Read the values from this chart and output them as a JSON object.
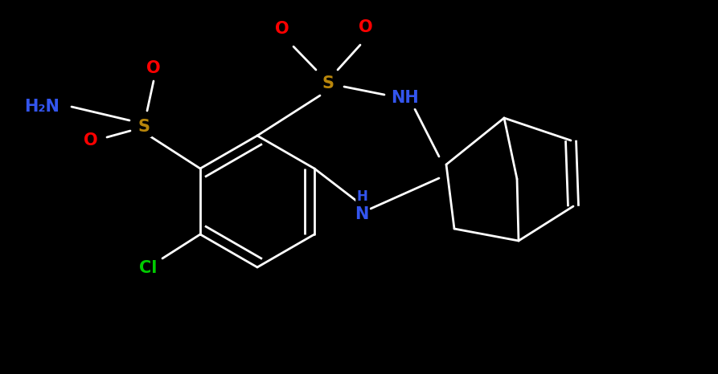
{
  "bg": "#000000",
  "wh": "#ffffff",
  "S_c": "#b8860b",
  "O_c": "#ff0000",
  "N_c": "#3355ee",
  "Cl_c": "#00cc00",
  "lw": 2.0,
  "fs": 15,
  "xlim": [
    0,
    8.93
  ],
  "ylim": [
    0,
    4.66
  ]
}
